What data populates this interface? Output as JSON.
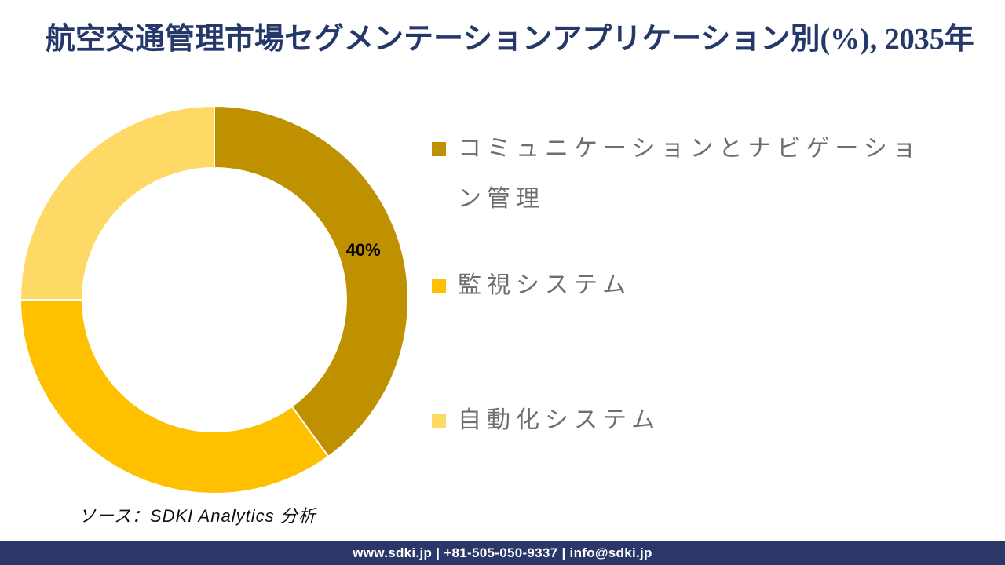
{
  "title": "航空交通管理市場セグメンテーションアプリケーション別(%), 2035年",
  "source_note": "ソース：SDKI Analytics 分析",
  "footer": {
    "text": "www.sdki.jp | +81-505-050-9337 | info@sdki.jp",
    "bg_color": "#2B3768",
    "text_color": "#FFFFFF"
  },
  "colors": {
    "title_text": "#26386A",
    "legend_text": "#6E6E6E",
    "slice_label_text": "#000000",
    "slice_divider": "#FFFFFF"
  },
  "chart_data": {
    "type": "pie",
    "subtype": "donut",
    "title": "航空交通管理市場セグメンテーションアプリケーション別(%), 2035年",
    "unit": "%",
    "categories": [
      "コミュニケーションとナビゲーション管理",
      "監視システム",
      "自動化システム"
    ],
    "values": [
      40,
      35,
      25
    ],
    "colors": [
      "#BF9000",
      "#FFC000",
      "#FFD966"
    ],
    "labels_shown": [
      "40%",
      "",
      ""
    ],
    "start_angle_deg": 0,
    "direction": "clockwise",
    "donut_hole_ratio": 0.68,
    "legend_position": "right",
    "grid": false
  }
}
